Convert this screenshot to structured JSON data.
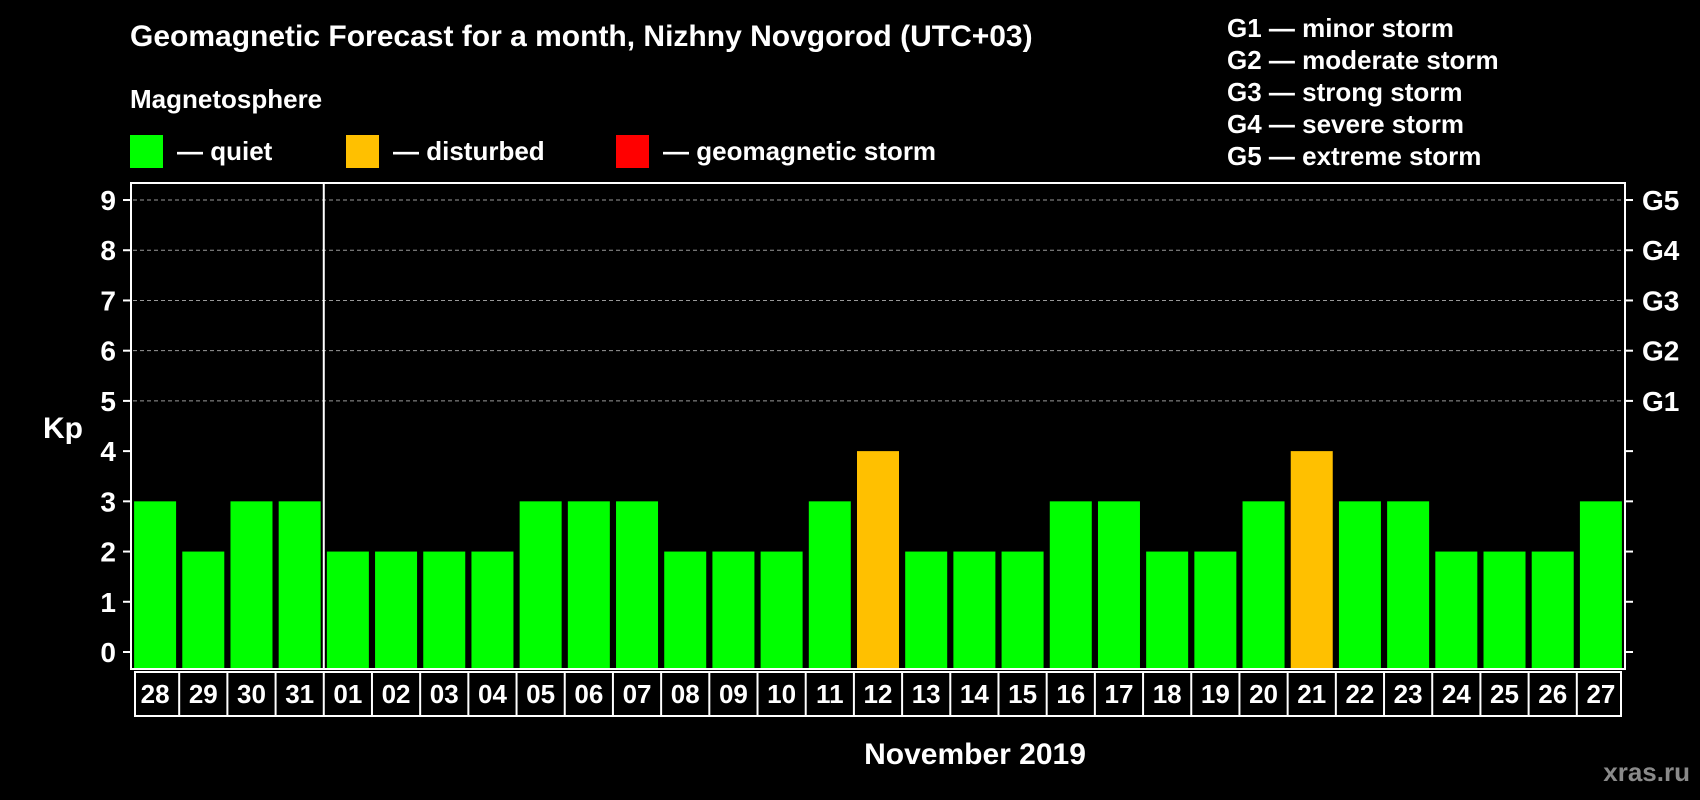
{
  "title": "Geomagnetic Forecast for a month, Nizhny Novgorod (UTC+03)",
  "subtitle": "Magnetosphere",
  "legend": [
    {
      "label": "— quiet",
      "color": "#00ff00"
    },
    {
      "label": "— disturbed",
      "color": "#ffc000"
    },
    {
      "label": "— geomagnetic storm",
      "color": "#ff0000"
    }
  ],
  "g_scale": [
    "G1 — minor storm",
    "G2 — moderate storm",
    "G3 — strong storm",
    "G4 — severe storm",
    "G5 — extreme storm"
  ],
  "watermark": "xras.ru",
  "chart_data": {
    "type": "bar",
    "ylabel": "Kp",
    "xlabel": "November 2019",
    "ylim": [
      0,
      9
    ],
    "yticks": [
      0,
      1,
      2,
      3,
      4,
      5,
      6,
      7,
      8,
      9
    ],
    "right_ticks": [
      {
        "kp": 5,
        "label": "G1"
      },
      {
        "kp": 6,
        "label": "G2"
      },
      {
        "kp": 7,
        "label": "G3"
      },
      {
        "kp": 8,
        "label": "G4"
      },
      {
        "kp": 9,
        "label": "G5"
      }
    ],
    "grid": "dashed, Kp 5–9",
    "month_separator_after": "31",
    "categories": [
      "28",
      "29",
      "30",
      "31",
      "01",
      "02",
      "03",
      "04",
      "05",
      "06",
      "07",
      "08",
      "09",
      "10",
      "11",
      "12",
      "13",
      "14",
      "15",
      "16",
      "17",
      "18",
      "19",
      "20",
      "21",
      "22",
      "23",
      "24",
      "25",
      "26",
      "27"
    ],
    "values": [
      3,
      2,
      3,
      3,
      2,
      2,
      2,
      2,
      3,
      3,
      3,
      2,
      2,
      2,
      3,
      4,
      2,
      2,
      2,
      3,
      3,
      2,
      2,
      3,
      4,
      3,
      3,
      2,
      2,
      2,
      3
    ],
    "colors": {
      "quiet": "#00ff00",
      "disturbed": "#ffc000",
      "storm": "#ff0000"
    }
  }
}
